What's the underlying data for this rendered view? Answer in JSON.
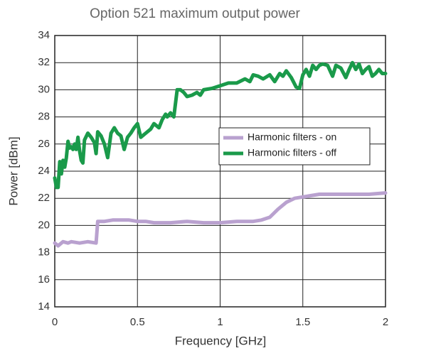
{
  "chart_data": {
    "type": "line",
    "title": "Option 521 maximum output power",
    "x_label": "Frequency [GHz]",
    "y_label": "Power [dBm]",
    "xlim": [
      0,
      2
    ],
    "ylim": [
      14,
      34
    ],
    "xticks": [
      0,
      0.5,
      1,
      1.5,
      2
    ],
    "yticks": [
      14,
      16,
      18,
      20,
      22,
      24,
      26,
      28,
      30,
      32,
      34
    ],
    "grid": true,
    "legend_position": "right",
    "series": [
      {
        "name": "Harmonic filters - on",
        "color": "#b9a1cf",
        "x": [
          0,
          0.02,
          0.05,
          0.08,
          0.1,
          0.15,
          0.2,
          0.25,
          0.26,
          0.3,
          0.35,
          0.4,
          0.45,
          0.5,
          0.55,
          0.6,
          0.7,
          0.8,
          0.9,
          1.0,
          1.1,
          1.2,
          1.25,
          1.3,
          1.35,
          1.4,
          1.45,
          1.5,
          1.55,
          1.6,
          1.7,
          1.8,
          1.9,
          2.0
        ],
        "values": [
          18.7,
          18.5,
          18.8,
          18.7,
          18.8,
          18.7,
          18.8,
          18.7,
          20.3,
          20.3,
          20.4,
          20.4,
          20.4,
          20.3,
          20.3,
          20.2,
          20.2,
          20.3,
          20.2,
          20.2,
          20.3,
          20.3,
          20.4,
          20.6,
          21.2,
          21.7,
          22.0,
          22.1,
          22.2,
          22.3,
          22.3,
          22.3,
          22.3,
          22.4
        ]
      },
      {
        "name": "Harmonic filters - off",
        "color": "#1a9a4a",
        "x": [
          0,
          0.01,
          0.02,
          0.03,
          0.04,
          0.05,
          0.06,
          0.07,
          0.08,
          0.09,
          0.1,
          0.11,
          0.12,
          0.13,
          0.14,
          0.15,
          0.16,
          0.17,
          0.18,
          0.2,
          0.22,
          0.24,
          0.25,
          0.26,
          0.28,
          0.3,
          0.32,
          0.34,
          0.36,
          0.38,
          0.4,
          0.42,
          0.44,
          0.46,
          0.48,
          0.5,
          0.52,
          0.55,
          0.58,
          0.6,
          0.63,
          0.65,
          0.67,
          0.68,
          0.7,
          0.72,
          0.74,
          0.76,
          0.78,
          0.8,
          0.83,
          0.86,
          0.88,
          0.9,
          0.95,
          1.0,
          1.05,
          1.1,
          1.15,
          1.18,
          1.2,
          1.23,
          1.26,
          1.3,
          1.33,
          1.36,
          1.38,
          1.4,
          1.43,
          1.46,
          1.48,
          1.5,
          1.52,
          1.54,
          1.56,
          1.58,
          1.6,
          1.62,
          1.65,
          1.68,
          1.7,
          1.73,
          1.76,
          1.78,
          1.8,
          1.82,
          1.84,
          1.86,
          1.88,
          1.9,
          1.92,
          1.94,
          1.96,
          1.98,
          2.0
        ],
        "values": [
          23.5,
          22.8,
          22.8,
          24.7,
          23.8,
          24.8,
          24.3,
          25.0,
          26.2,
          25.7,
          25.8,
          25.6,
          26.0,
          25.6,
          26.5,
          25.5,
          24.8,
          24.6,
          26.3,
          26.8,
          26.5,
          26.1,
          25.3,
          26.9,
          26.6,
          26.0,
          25.0,
          26.8,
          27.2,
          26.8,
          26.6,
          25.6,
          26.5,
          26.8,
          27.2,
          27.5,
          26.5,
          26.8,
          27.1,
          27.5,
          27.2,
          27.8,
          28.2,
          28.0,
          28.3,
          28.0,
          30.0,
          30.0,
          29.8,
          29.5,
          29.6,
          29.8,
          29.6,
          30.0,
          30.1,
          30.3,
          30.5,
          30.5,
          30.8,
          30.6,
          31.1,
          31.0,
          30.8,
          31.1,
          30.6,
          31.2,
          31.0,
          31.4,
          30.9,
          30.2,
          30.1,
          31.1,
          31.5,
          31.0,
          31.8,
          31.5,
          31.8,
          31.9,
          31.8,
          31.0,
          31.8,
          31.6,
          30.9,
          31.5,
          32.0,
          31.5,
          31.9,
          31.2,
          31.5,
          31.7,
          31.0,
          31.2,
          31.5,
          31.2,
          31.2
        ]
      }
    ]
  }
}
